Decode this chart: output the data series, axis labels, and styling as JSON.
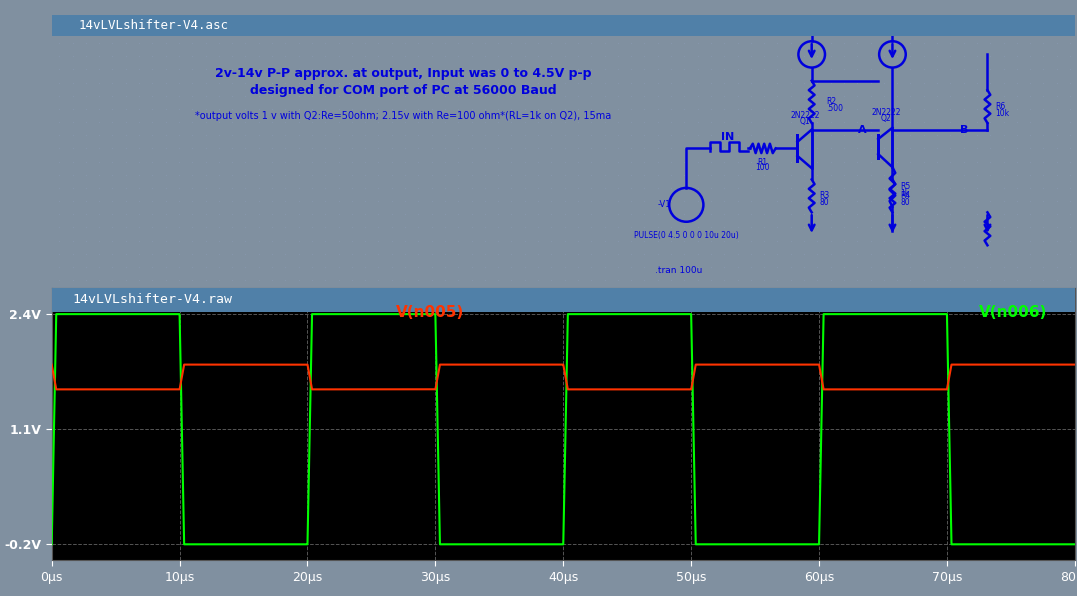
{
  "title_top": "14vLVLshifter-V4.asc",
  "title_bottom": "14vLVLshifter-V4.raw",
  "circuit_title1": "2v-14v P-P approx. at output, Input was 0 to 4.5V p-p",
  "circuit_title2": "designed for COM port of PC at 56000 Baud",
  "circuit_note": "*output volts 1 v with Q2:Re=50ohm; 2.15v with Re=100 ohm*(RL=1k on Q2), 15ma",
  "label_v1": "V(n005)",
  "label_v2": "V(n006)",
  "label_v1_color": "#ff3300",
  "label_v2_color": "#00ff00",
  "bg_circuit": "#aabccc",
  "bg_bottom": "#000000",
  "titlebar_color": "#5080a8",
  "dot_color": "#8898b0",
  "blue": "#0000dd",
  "yticks": [
    -0.2,
    1.1,
    2.4
  ],
  "ytick_labels": [
    "-0.2V",
    "1.1V",
    "2.4V"
  ],
  "xmax": 80,
  "xmin": 0,
  "ymin": -0.38,
  "ymax": 2.7,
  "period": 20,
  "green_high": 2.4,
  "green_low": -0.2,
  "red_low": 1.55,
  "red_high": 1.83,
  "rise_time": 0.35
}
